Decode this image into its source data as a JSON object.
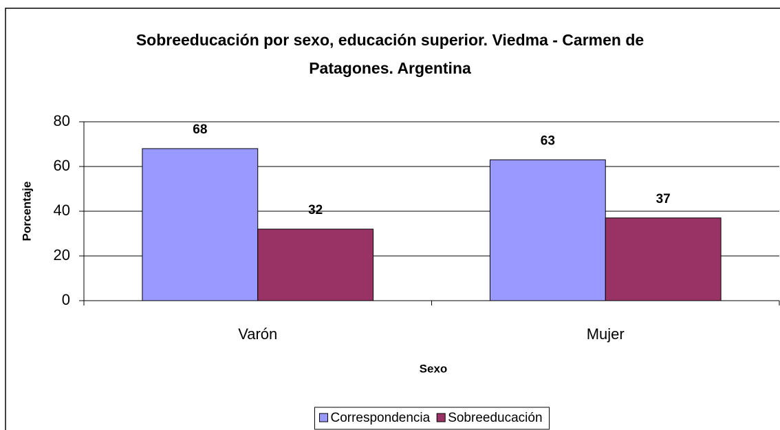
{
  "chart_data": {
    "type": "bar",
    "title": "Sobreeducación por sexo, educación superior. Viedma - Carmen de Patagones. Argentina",
    "x_label": "Sexo",
    "y_label": "Porcentaje",
    "categories": [
      "Varón",
      "Mujer"
    ],
    "series": [
      {
        "name": "Correspondencia",
        "color": "#9999ff",
        "values": [
          68,
          63
        ]
      },
      {
        "name": "Sobreeducación",
        "color": "#993366",
        "values": [
          32,
          37
        ]
      }
    ],
    "ylim": [
      0,
      80
    ],
    "yticks": [
      0,
      20,
      40,
      60,
      80
    ],
    "grid": true,
    "legend": "bottom"
  }
}
